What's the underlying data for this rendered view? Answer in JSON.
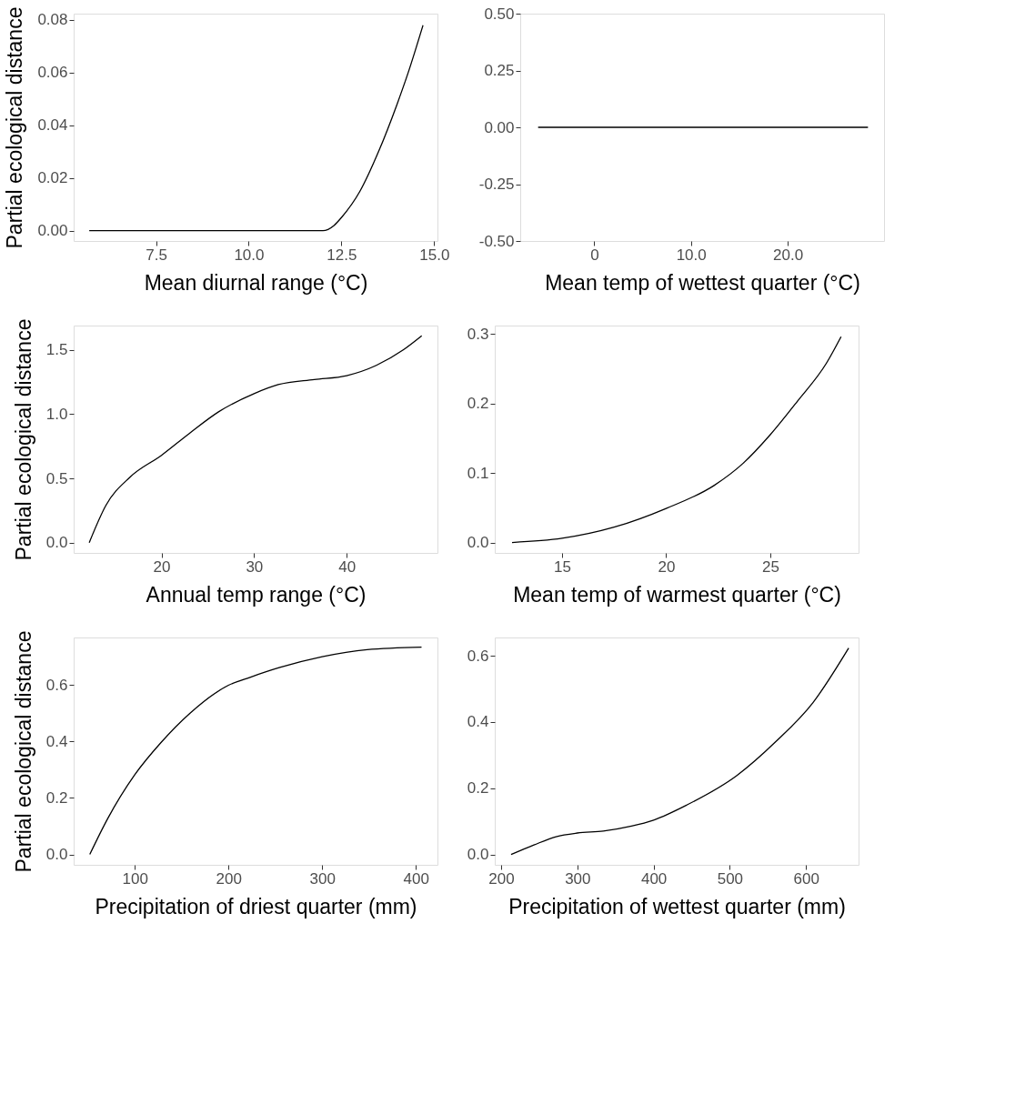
{
  "chart_data": [
    {
      "type": "line",
      "xlabel": "Mean diurnal range (°C)",
      "ylabel": "Partial ecological distance",
      "xlim": [
        5.28,
        15.09
      ],
      "ylim": [
        -0.0039,
        0.0824
      ],
      "xticks": [
        7.5,
        {
          "value": 10,
          "label": "10.0"
        },
        12.5,
        {
          "value": 15,
          "label": "15.0"
        }
      ],
      "yticks": [
        {
          "value": 0,
          "label": "0.00"
        },
        0.02,
        0.04,
        0.06,
        0.08
      ],
      "series": [
        {
          "color": "#000000",
          "x": [
            5.7,
            8.0,
            10.0,
            12.0,
            12.3,
            12.5,
            13.0,
            13.5,
            14.0,
            14.3,
            14.7
          ],
          "values": [
            0,
            0,
            0,
            0,
            0.002,
            0.005,
            0.015,
            0.03,
            0.048,
            0.06,
            0.078
          ]
        }
      ]
    },
    {
      "type": "line",
      "xlabel": "Mean temp of wettest quarter (°C)",
      "xlim": [
        -7.65,
        29.96
      ],
      "ylim": [
        -0.5,
        0.5
      ],
      "xticks": [
        0,
        {
          "value": 10,
          "label": "10.0"
        },
        {
          "value": 20,
          "label": "20.0"
        }
      ],
      "yticks": [
        {
          "value": -0.5,
          "label": "-0.50"
        },
        -0.25,
        {
          "value": 0,
          "label": "0.00"
        },
        0.25,
        {
          "value": 0.5,
          "label": "0.50"
        }
      ],
      "series": [
        {
          "color": "#000000",
          "x": [
            -5.8,
            28.3
          ],
          "values": [
            0,
            0
          ]
        }
      ]
    },
    {
      "type": "line",
      "xlabel": "Annual temp range (°C)",
      "ylabel": "Partial ecological distance",
      "xlim": [
        10.52,
        49.8
      ],
      "ylim": [
        -0.08,
        1.69
      ],
      "xticks": [
        20,
        30,
        40
      ],
      "yticks": [
        {
          "value": 0,
          "label": "0.0"
        },
        0.5,
        {
          "value": 1,
          "label": "1.0"
        },
        1.5
      ],
      "series": [
        {
          "color": "#000000",
          "x": [
            12.2,
            14.0,
            16.6,
            20.0,
            23.0,
            26.2,
            30.0,
            32.6,
            36.5,
            40.0,
            43.2,
            46.1,
            48.1
          ],
          "values": [
            0,
            0.29,
            0.51,
            0.68,
            0.85,
            1.02,
            1.16,
            1.23,
            1.27,
            1.3,
            1.38,
            1.5,
            1.61
          ]
        }
      ]
    },
    {
      "type": "line",
      "xlabel": "Mean temp of warmest quarter (°C)",
      "xlim": [
        11.77,
        29.24
      ],
      "ylim": [
        -0.015,
        0.312
      ],
      "xticks": [
        15,
        20,
        25
      ],
      "yticks": [
        {
          "value": 0,
          "label": "0.0"
        },
        0.1,
        0.2,
        0.3
      ],
      "series": [
        {
          "color": "#000000",
          "x": [
            12.6,
            15.0,
            17.5,
            20.0,
            22.3,
            23.7,
            25.0,
            26.3,
            27.7,
            28.4
          ],
          "values": [
            0,
            0.006,
            0.022,
            0.049,
            0.082,
            0.114,
            0.155,
            0.203,
            0.258,
            0.296
          ]
        }
      ]
    },
    {
      "type": "line",
      "xlabel": "Precipitation of driest quarter (mm)",
      "ylabel": "Partial ecological distance",
      "xlim": [
        34.8,
        423
      ],
      "ylim": [
        -0.037,
        0.768
      ],
      "xticks": [
        100,
        200,
        300,
        400
      ],
      "yticks": [
        {
          "value": 0,
          "label": "0.0"
        },
        0.2,
        0.4,
        0.6
      ],
      "series": [
        {
          "color": "#000000",
          "x": [
            52,
            71,
            100,
            128,
            159,
            200,
            223,
            254,
            300,
            348,
            406
          ],
          "values": [
            0,
            0.126,
            0.282,
            0.396,
            0.5,
            0.599,
            0.627,
            0.661,
            0.7,
            0.725,
            0.734
          ]
        }
      ]
    },
    {
      "type": "line",
      "xlabel": "Precipitation of wettest quarter (mm)",
      "xlim": [
        191.6,
        669
      ],
      "ylim": [
        -0.031,
        0.655
      ],
      "xticks": [
        200,
        300,
        400,
        500,
        600
      ],
      "yticks": [
        {
          "value": 0,
          "label": "0.0"
        },
        0.2,
        0.4,
        0.6
      ],
      "series": [
        {
          "color": "#000000",
          "x": [
            213,
            243,
            272,
            300,
            334,
            371,
            400,
            444,
            509,
            561,
            609,
            656
          ],
          "values": [
            0,
            0.029,
            0.054,
            0.065,
            0.071,
            0.086,
            0.104,
            0.15,
            0.238,
            0.342,
            0.458,
            0.623
          ]
        }
      ]
    }
  ]
}
